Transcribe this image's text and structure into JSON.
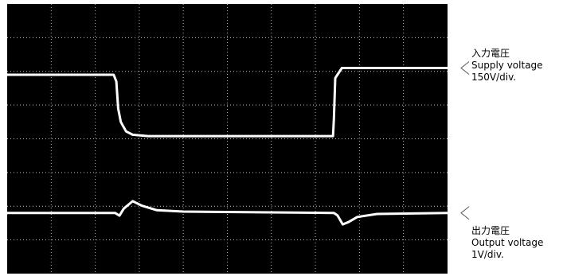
{
  "colors": {
    "screen": "#000000",
    "trace": "#ffffff",
    "grid": "#bfbfbf",
    "marker": "#555555"
  },
  "chart_data": {
    "type": "line",
    "x_divisions": 10,
    "y_divisions": 8,
    "grid": true,
    "series": [
      {
        "name": "Supply voltage",
        "label": {
          "ja": "入力電圧",
          "en": "Supply voltage",
          "scale": "150V/div."
        },
        "unit_per_div": "150V/div.",
        "points": [
          [
            0,
            5.9
          ],
          [
            2.42,
            5.9
          ],
          [
            2.48,
            5.7
          ],
          [
            2.52,
            4.9
          ],
          [
            2.58,
            4.5
          ],
          [
            2.7,
            4.22
          ],
          [
            2.85,
            4.12
          ],
          [
            3.2,
            4.08
          ],
          [
            7.4,
            4.08
          ],
          [
            7.42,
            4.6
          ],
          [
            7.45,
            5.8
          ],
          [
            7.6,
            6.1
          ],
          [
            10,
            6.1
          ]
        ]
      },
      {
        "name": "Output voltage",
        "label": {
          "ja": "出力電圧",
          "en": "Output voltage",
          "scale": "1V/div."
        },
        "unit_per_div": "1V/div.",
        "points": [
          [
            0,
            1.8
          ],
          [
            2.45,
            1.8
          ],
          [
            2.55,
            1.72
          ],
          [
            2.65,
            1.93
          ],
          [
            2.85,
            2.15
          ],
          [
            3.05,
            2.02
          ],
          [
            3.4,
            1.88
          ],
          [
            4,
            1.84
          ],
          [
            7.42,
            1.8
          ],
          [
            7.5,
            1.73
          ],
          [
            7.62,
            1.46
          ],
          [
            7.75,
            1.53
          ],
          [
            7.95,
            1.68
          ],
          [
            8.4,
            1.77
          ],
          [
            10,
            1.8
          ]
        ]
      }
    ]
  }
}
